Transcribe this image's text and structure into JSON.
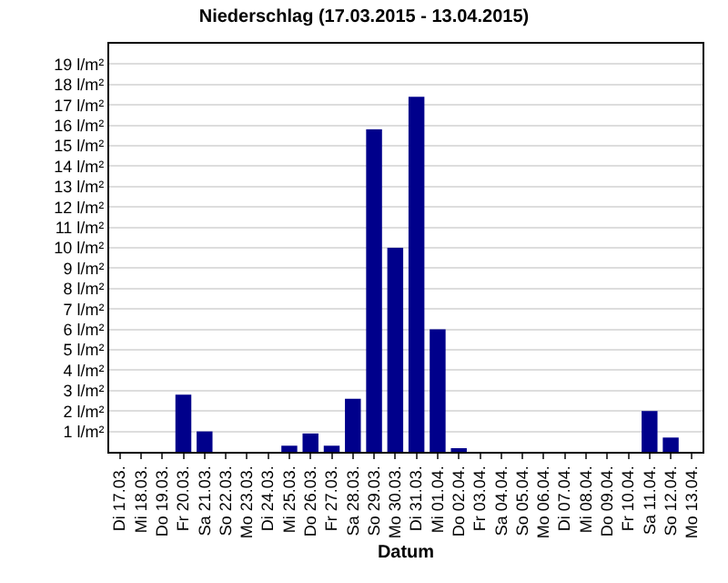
{
  "chart_data": {
    "type": "bar",
    "title": "Niederschlag (17.03.2015 - 13.04.2015)",
    "xlabel": "Datum",
    "categories": [
      "Di 17.03.",
      "Mi 18.03.",
      "Do 19.03.",
      "Fr 20.03.",
      "Sa 21.03.",
      "So 22.03.",
      "Mo 23.03.",
      "Di 24.03.",
      "Mi 25.03.",
      "Do 26.03.",
      "Fr 27.03.",
      "Sa 28.03.",
      "So 29.03.",
      "Mo 30.03.",
      "Di 31.03.",
      "Mi 01.04.",
      "Do 02.04.",
      "Fr 03.04.",
      "Sa 04.04.",
      "So 05.04.",
      "Mo 06.04.",
      "Di 07.04.",
      "Mi 08.04.",
      "Do 09.04.",
      "Fr 10.04.",
      "Sa 11.04.",
      "So 12.04.",
      "Mo 13.04."
    ],
    "values": [
      0,
      0,
      0,
      2.8,
      1.0,
      0,
      0,
      0,
      0.3,
      0.9,
      0.3,
      2.6,
      15.8,
      10.0,
      17.4,
      6.0,
      0.1,
      0,
      0,
      0,
      0,
      0,
      0,
      0,
      0,
      2.0,
      0.7,
      0
    ],
    "color": "#00008b",
    "ylim": [
      0,
      20
    ],
    "yticks": [
      {
        "value": 1,
        "label": "1 l/m²"
      },
      {
        "value": 2,
        "label": "2 l/m²"
      },
      {
        "value": 3,
        "label": "3 l/m²"
      },
      {
        "value": 4,
        "label": "4 l/m²"
      },
      {
        "value": 5,
        "label": "5 l/m²"
      },
      {
        "value": 6,
        "label": "6 l/m²"
      },
      {
        "value": 7,
        "label": "7 l/m²"
      },
      {
        "value": 8,
        "label": "8 l/m²"
      },
      {
        "value": 9,
        "label": "9 l/m²"
      },
      {
        "value": 10,
        "label": "10 l/m²"
      },
      {
        "value": 11,
        "label": "11 l/m²"
      },
      {
        "value": 12,
        "label": "12 l/m²"
      },
      {
        "value": 13,
        "label": "13 l/m²"
      },
      {
        "value": 14,
        "label": "14 l/m²"
      },
      {
        "value": 15,
        "label": "15 l/m²"
      },
      {
        "value": 16,
        "label": "16 l/m²"
      },
      {
        "value": 17,
        "label": "17 l/m²"
      },
      {
        "value": 18,
        "label": "18 l/m²"
      },
      {
        "value": 19,
        "label": "19 l/m²"
      }
    ],
    "grid": "y"
  }
}
